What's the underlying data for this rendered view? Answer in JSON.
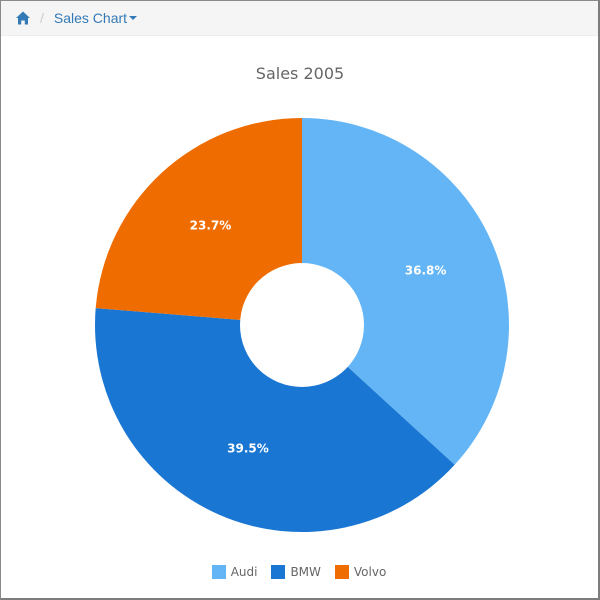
{
  "breadcrumb": {
    "home_icon": "home-icon",
    "separator": "/",
    "current": "Sales Chart"
  },
  "colors": {
    "audi": "#64b5f6",
    "bmw": "#1976d2",
    "volvo": "#ef6c00",
    "link": "#337ab7"
  },
  "chart": {
    "title": "Sales 2005",
    "labels": [
      "36.8%",
      "39.5%",
      "23.7%"
    ],
    "legend": [
      "Audi",
      "BMW",
      "Volvo"
    ]
  },
  "chart_data": {
    "type": "pie",
    "variant": "donut",
    "title": "Sales 2005",
    "categories": [
      "Audi",
      "BMW",
      "Volvo"
    ],
    "values": [
      36.8,
      39.5,
      23.7
    ],
    "unit": "%",
    "colors": [
      "#64b5f6",
      "#1976d2",
      "#ef6c00"
    ],
    "start_angle_deg": 0,
    "direction": "clockwise",
    "inner_radius_ratio": 0.3,
    "legend_position": "bottom",
    "data_labels": [
      "36.8%",
      "39.5%",
      "23.7%"
    ]
  }
}
